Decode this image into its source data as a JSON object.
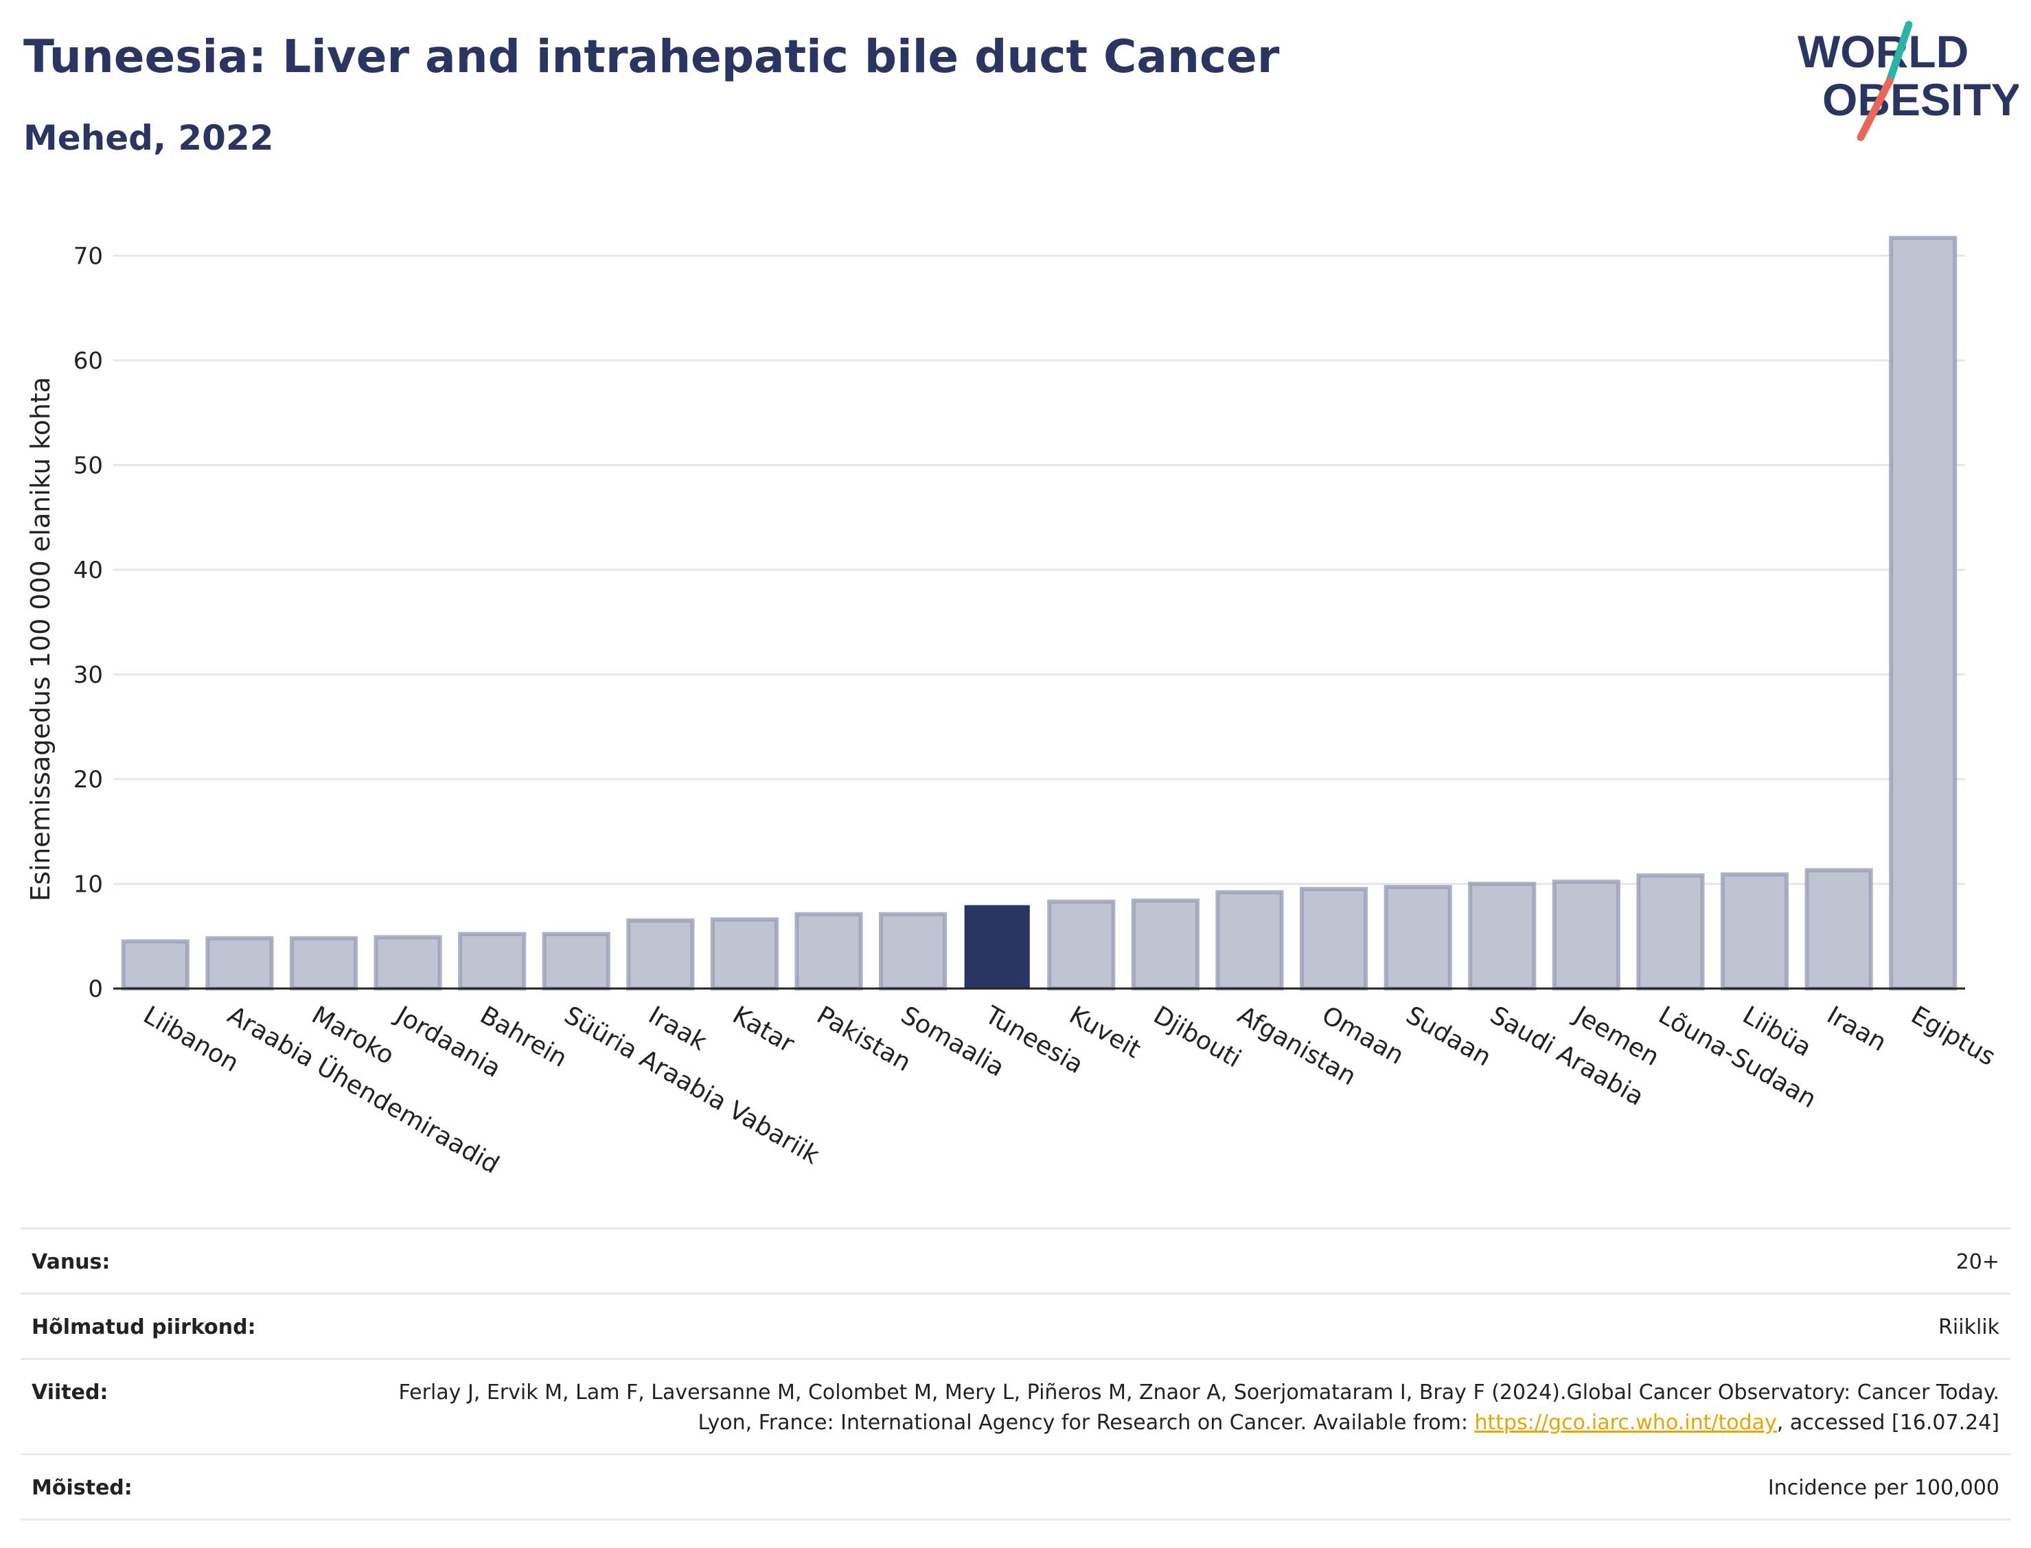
{
  "header": {
    "title": "Tuneesia: Liver and intrahepatic bile duct Cancer",
    "subtitle": "Mehed, 2022"
  },
  "logo": {
    "line1": "WORLD",
    "line2": "OBESITY",
    "accent_teal": "#2ab3a6",
    "accent_coral": "#e8665a",
    "text_color": "#2a3561"
  },
  "colors": {
    "bar": "#c0c3d2",
    "bar_edge": "#9a9fb8",
    "highlight": "#2a3561",
    "grid": "#e6e6ec",
    "axis": "#222222"
  },
  "chart_data": {
    "type": "bar",
    "ylabel": "Esinemissagedus 100 000 elaniku kohta",
    "ylim": [
      0,
      72
    ],
    "yticks": [
      0,
      10,
      20,
      30,
      40,
      50,
      60,
      70
    ],
    "grid": true,
    "highlight": "Tuneesia",
    "categories": [
      "Liibanon",
      "Araabia Ühendemiraadid",
      "Maroko",
      "Jordaania",
      "Bahrein",
      "Süüria Araabia Vabariik",
      "Iraak",
      "Katar",
      "Pakistan",
      "Somaalia",
      "Tuneesia",
      "Kuveit",
      "Djibouti",
      "Afganistan",
      "Omaan",
      "Sudaan",
      "Saudi Araabia",
      "Jeemen",
      "Lõuna-Sudaan",
      "Liibüa",
      "Iraan",
      "Egiptus"
    ],
    "values": [
      4.5,
      4.8,
      4.8,
      4.9,
      5.2,
      5.2,
      6.5,
      6.6,
      7.1,
      7.1,
      7.9,
      8.3,
      8.4,
      9.2,
      9.5,
      9.7,
      10.0,
      10.2,
      10.8,
      10.9,
      11.3,
      71.7
    ]
  },
  "info": [
    {
      "label": "Vanus:",
      "value": "20+"
    },
    {
      "label": "Hõlmatud piirkond:",
      "value": "Riiklik"
    },
    {
      "label": "Viited:",
      "value_pre": "Ferlay J, Ervik M, Lam F, Laversanne M, Colombet M, Mery L, Piñeros M, Znaor A, Soerjomataram I, Bray F (2024).Global Cancer Observatory: Cancer Today. Lyon, France: International Agency for Research on Cancer. Available from: ",
      "link": "https://gco.iarc.who.int/today",
      "value_post": ", accessed [16.07.24]"
    },
    {
      "label": "Mõisted:",
      "value": "Incidence per 100,000"
    }
  ]
}
